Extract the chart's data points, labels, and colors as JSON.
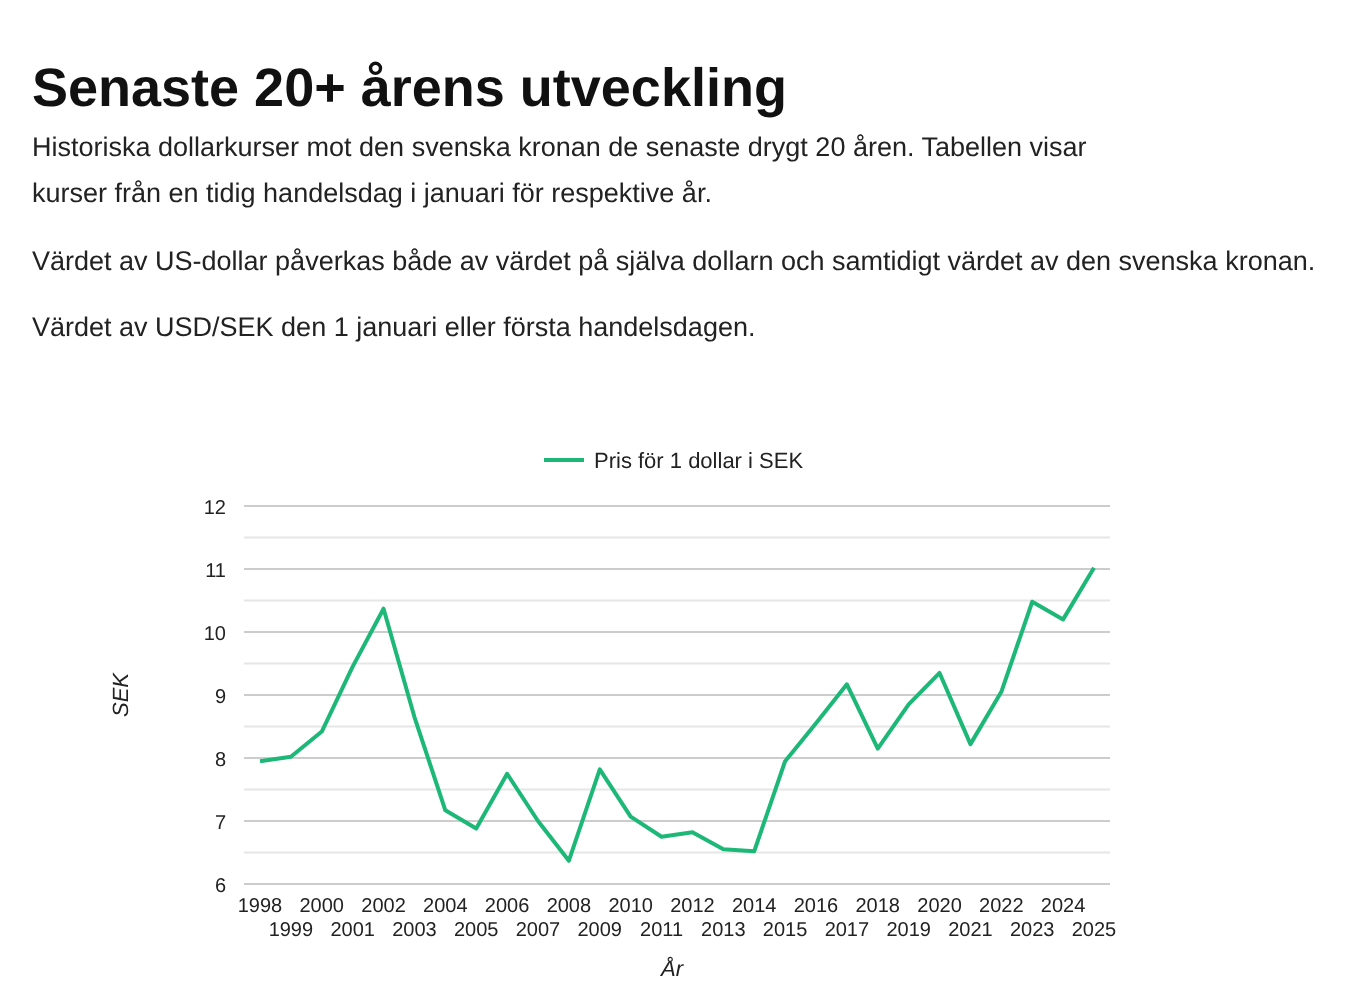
{
  "chart_data": {
    "type": "line",
    "title": "Senaste 20+ årens utveckling",
    "subtitle": "Historiska dollarkurser mot den svenska kronan de senaste drygt 20 åren. Tabellen visar kurser från en tidig handelsdag i januari för respektive år.",
    "annotations": [
      "Värdet av US-dollar påverkas både av värdet på själva dollarn och samtidigt värdet av den svenska kronan.",
      "Värdet av USD/SEK den 1 januari eller första handelsdagen."
    ],
    "xlabel": "År",
    "ylabel": "SEK",
    "categories": [
      "1998",
      "1999",
      "2000",
      "2001",
      "2002",
      "2003",
      "2004",
      "2005",
      "2006",
      "2007",
      "2008",
      "2009",
      "2010",
      "2011",
      "2012",
      "2013",
      "2014",
      "2015",
      "2016",
      "2017",
      "2018",
      "2019",
      "2020",
      "2021",
      "2022",
      "2023",
      "2024",
      "2025"
    ],
    "series": [
      {
        "name": "Pris för 1 dollar i SEK",
        "color": "#1db877",
        "values": [
          7.95,
          8.02,
          8.42,
          9.45,
          10.37,
          8.65,
          7.17,
          6.88,
          7.75,
          7.0,
          6.37,
          7.82,
          7.07,
          6.75,
          6.82,
          6.55,
          6.52,
          7.95,
          8.55,
          9.17,
          8.15,
          8.85,
          9.35,
          8.22,
          9.05,
          10.48,
          10.2,
          11.02
        ]
      }
    ],
    "ylim": [
      6,
      12
    ],
    "yticks": [
      6,
      {
        "value": 6.5,
        "label": null
      },
      7,
      {
        "value": 7.5,
        "label": null
      },
      8,
      {
        "value": 8.5,
        "label": null
      },
      9,
      {
        "value": 9.5,
        "label": null
      },
      10,
      {
        "value": 10.5,
        "label": null
      },
      11,
      {
        "value": 11.5,
        "label": null
      },
      12
    ],
    "grid": "y",
    "legend": "top",
    "marker": "none",
    "line_style": "solid"
  }
}
